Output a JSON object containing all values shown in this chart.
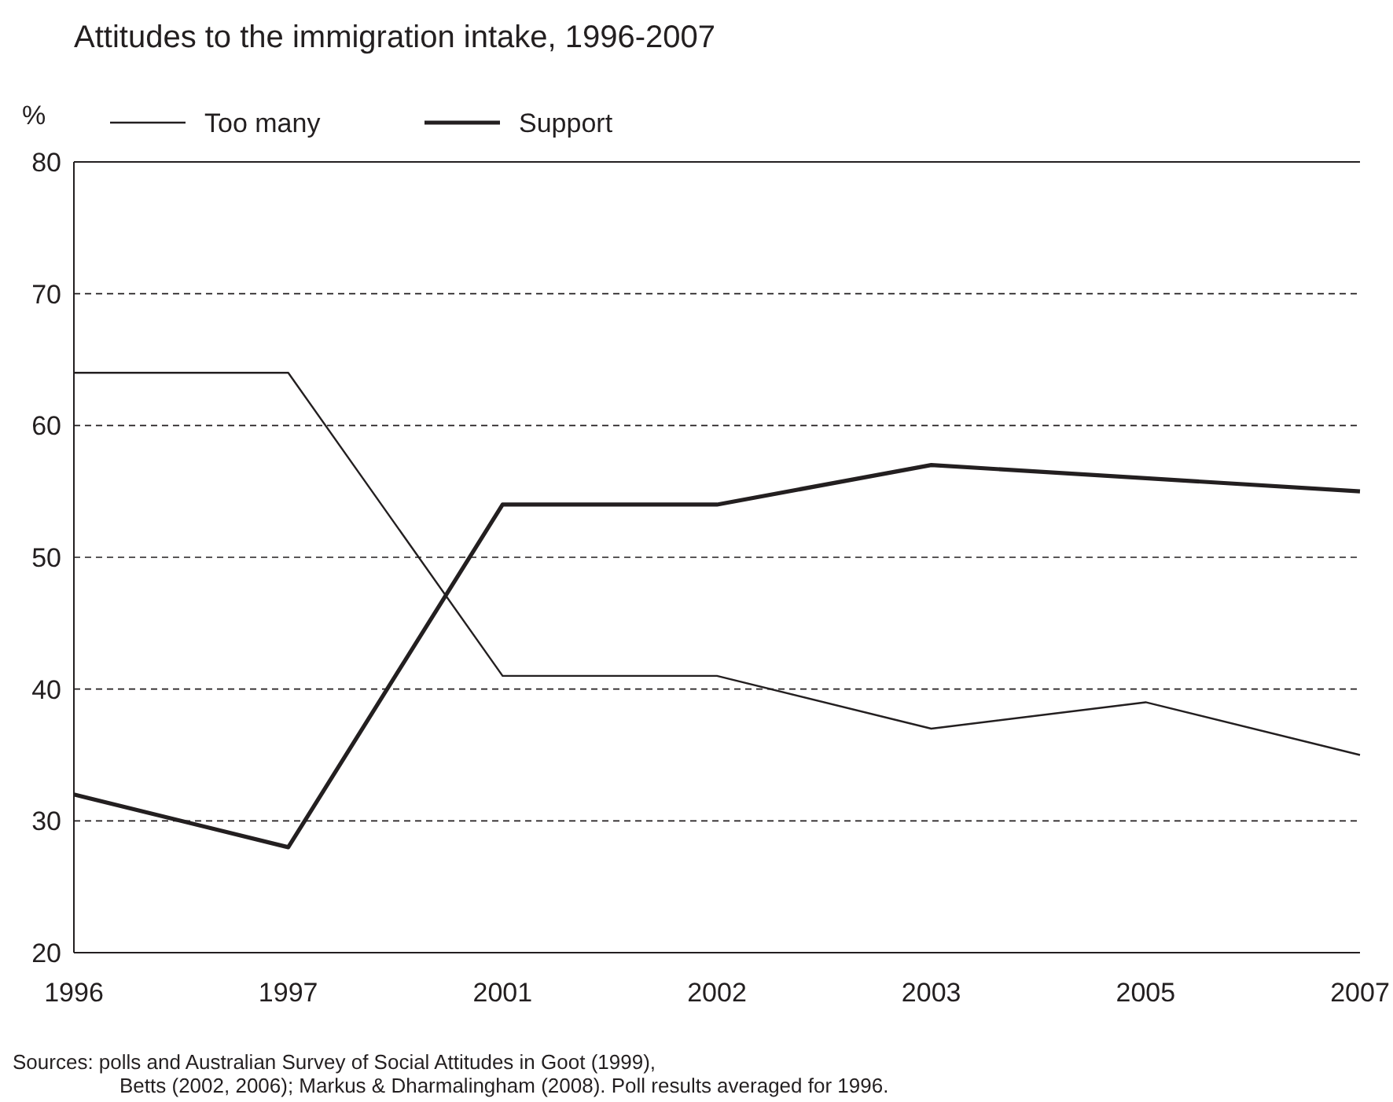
{
  "chart_data": {
    "type": "line",
    "title": "Attitudes to the immigration intake, 1996-2007",
    "ylabel": "%",
    "categories": [
      "1996",
      "1997",
      "2001",
      "2002",
      "2003",
      "2005",
      "2007"
    ],
    "series": [
      {
        "name": "Too many",
        "color": "#231f20",
        "values": [
          64,
          64,
          41,
          41,
          37,
          39,
          35
        ]
      },
      {
        "name": "Support",
        "color": "#231f20",
        "values": [
          32,
          28,
          54,
          54,
          57,
          56,
          55
        ]
      }
    ],
    "ylim": [
      20,
      80
    ],
    "yticks": [
      20,
      30,
      40,
      50,
      60,
      70,
      80
    ],
    "grid": "y",
    "legend": "top left",
    "marker": "none",
    "line_style": "solid",
    "annotations": [
      "Sources: polls and Australian Survey of Social Attitudes in Goot (1999),",
      "Betts (2002, 2006); Markus & Dharmalingham (2008). Poll results averaged for 1996."
    ]
  }
}
